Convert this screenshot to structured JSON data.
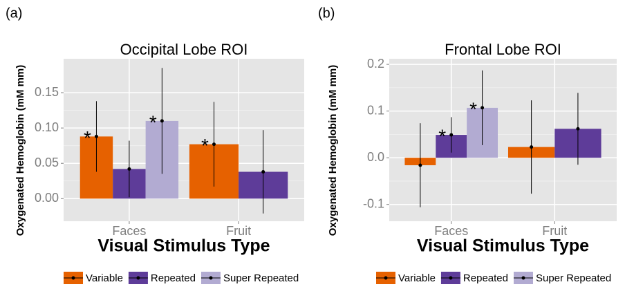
{
  "chart_data": [
    {
      "type": "bar",
      "panel_label": "(a)",
      "title": "Occipital Lobe ROI",
      "x_label": "Visual Stimulus Type",
      "y_label": "Oxygenated Hemoglobin (mM mm)",
      "categories": [
        "Faces",
        "Fruit"
      ],
      "series": [
        {
          "name": "Variable",
          "color": "#e66100",
          "values": [
            0.088,
            0.077
          ],
          "errors": [
            0.05,
            0.06
          ],
          "annotations": [
            "*",
            "*"
          ]
        },
        {
          "name": "Repeated",
          "color": "#5e3c99",
          "values": [
            0.042,
            0.038
          ],
          "errors": [
            0.04,
            0.059
          ],
          "annotations": [
            null,
            null
          ]
        },
        {
          "name": "Super Repeated",
          "color": "#b2abd2",
          "values": [
            0.11,
            null
          ],
          "errors": [
            0.075,
            null
          ],
          "annotations": [
            "*",
            null
          ]
        }
      ],
      "ylim": [
        -0.032,
        0.198
      ],
      "yticks": [
        {
          "value": 0,
          "label": "0.00"
        },
        {
          "value": 0.05,
          "label": "0.05"
        },
        {
          "value": 0.1,
          "label": "0.10"
        },
        {
          "value": 0.15,
          "label": "0.15"
        }
      ],
      "grid": true
    },
    {
      "type": "bar",
      "panel_label": "(b)",
      "title": "Frontal Lobe ROI",
      "x_label": "Visual Stimulus Type",
      "y_label": "Oxygenated Hemoglobin (mM mm)",
      "categories": [
        "Faces",
        "Fruit"
      ],
      "series": [
        {
          "name": "Variable",
          "color": "#e66100",
          "values": [
            -0.016,
            0.023
          ],
          "errors": [
            0.09,
            0.1
          ],
          "annotations": [
            null,
            null
          ]
        },
        {
          "name": "Repeated",
          "color": "#5e3c99",
          "values": [
            0.049,
            0.062
          ],
          "errors": [
            0.038,
            0.077
          ],
          "annotations": [
            "*",
            null
          ]
        },
        {
          "name": "Super Repeated",
          "color": "#b2abd2",
          "values": [
            0.107,
            null
          ],
          "errors": [
            0.08,
            null
          ],
          "annotations": [
            "*",
            null
          ]
        }
      ],
      "ylim": [
        -0.136,
        0.212
      ],
      "yticks": [
        -0.1,
        {
          "value": 0,
          "label": "0.0"
        },
        0.1,
        0.2
      ],
      "grid": true
    }
  ]
}
